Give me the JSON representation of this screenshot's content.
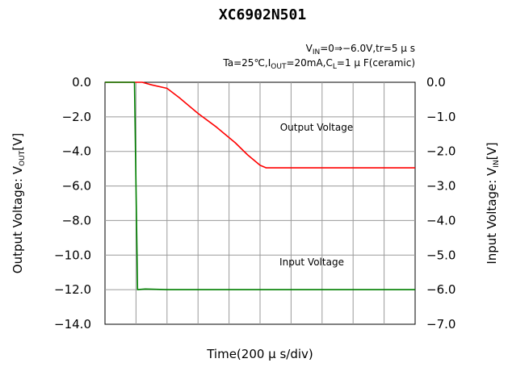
{
  "chart_data": {
    "type": "line",
    "title": "XC6902N501",
    "conditions": [
      {
        "pre": "V",
        "sub": "IN",
        "post": "=0⇒−6.0V,tr=5 μ s"
      },
      {
        "pre": "Ta=25℃,I",
        "sub": "OUT",
        "post": "=20mA,C",
        "sub2": "L",
        "post2": "=1 μ F(ceramic)"
      }
    ],
    "xlabel": "Time(200 μ s/div)",
    "ylabel_left": {
      "pre": "Output Voltage: V",
      "sub": "OUT",
      "post": "[V]"
    },
    "ylabel_right": {
      "pre": "Input Voltage: V",
      "sub": "IN",
      "post": "[V]"
    },
    "x_divisions": 10,
    "xlim": [
      0,
      10
    ],
    "ylim_left": [
      -14,
      0
    ],
    "ylim_right": [
      -7,
      0
    ],
    "yticks_left": [
      "0.0",
      "−2.0",
      "−4.0",
      "−6.0",
      "−8.0",
      "−10.0",
      "−12.0",
      "−14.0"
    ],
    "yticks_right": [
      "0.0",
      "−1.0",
      "−2.0",
      "−3.0",
      "−4.0",
      "−5.0",
      "−6.0",
      "−7.0"
    ],
    "grid": true,
    "series": [
      {
        "name": "Output Voltage",
        "axis": "left",
        "color": "#ff0000",
        "x": [
          0,
          1.2,
          1.5,
          2.0,
          2.4,
          3.0,
          3.6,
          4.2,
          4.6,
          5.0,
          5.2,
          10
        ],
        "y": [
          0,
          0,
          -0.15,
          -0.35,
          -0.9,
          -1.8,
          -2.6,
          -3.5,
          -4.2,
          -4.8,
          -4.95,
          -4.95
        ]
      },
      {
        "name": "Input Voltage",
        "axis": "right",
        "color": "#008000",
        "x": [
          0,
          0.95,
          1.05,
          1.3,
          2.0,
          4.0,
          6.0,
          8.0,
          10
        ],
        "y": [
          0,
          0,
          -6.0,
          -5.98,
          -6.0,
          -6.0,
          -6.0,
          -6.0,
          -6.0
        ]
      }
    ],
    "annotations": [
      {
        "text": "Output Voltage",
        "near_series": "Output Voltage"
      },
      {
        "text": "Input Voltage",
        "near_series": "Input Voltage"
      }
    ]
  }
}
